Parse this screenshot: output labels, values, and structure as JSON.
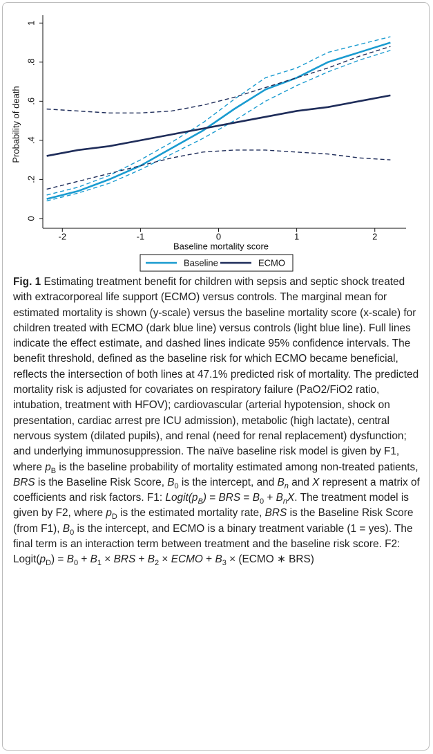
{
  "chart_data": {
    "type": "line",
    "xlabel": "Baseline mortality score",
    "ylabel": "Probability of death",
    "x": [
      -2.2,
      -1.8,
      -1.4,
      -1,
      -0.6,
      -0.2,
      0.2,
      0.6,
      1,
      1.4,
      1.8,
      2.2
    ],
    "series": [
      {
        "name": "Baseline",
        "color": "#1a9bd0",
        "values": [
          0.1,
          0.14,
          0.2,
          0.27,
          0.36,
          0.45,
          0.56,
          0.66,
          0.72,
          0.8,
          0.85,
          0.9
        ],
        "lower": [
          0.09,
          0.13,
          0.18,
          0.25,
          0.33,
          0.41,
          0.5,
          0.6,
          0.68,
          0.75,
          0.81,
          0.86
        ],
        "upper": [
          0.12,
          0.16,
          0.22,
          0.3,
          0.39,
          0.49,
          0.61,
          0.72,
          0.77,
          0.85,
          0.89,
          0.93
        ]
      },
      {
        "name": "ECMO",
        "color": "#1f2d5a",
        "values": [
          0.32,
          0.35,
          0.37,
          0.4,
          0.43,
          0.46,
          0.49,
          0.52,
          0.55,
          0.57,
          0.6,
          0.63
        ],
        "lower": [
          0.15,
          0.19,
          0.23,
          0.27,
          0.31,
          0.34,
          0.35,
          0.35,
          0.34,
          0.33,
          0.31,
          0.3
        ],
        "upper": [
          0.56,
          0.55,
          0.54,
          0.54,
          0.55,
          0.58,
          0.62,
          0.67,
          0.72,
          0.77,
          0.83,
          0.88
        ]
      }
    ],
    "xlim": [
      -2.25,
      2.4
    ],
    "ylim": [
      -0.05,
      1.04
    ],
    "xticks": [
      -2,
      -1,
      0,
      1,
      2
    ],
    "yticks": [
      0,
      {
        "value": 0.2,
        "label": ".2"
      },
      {
        "value": 0.4,
        "label": ".4"
      },
      {
        "value": 0.6,
        "label": ".6"
      },
      {
        "value": 0.8,
        "label": ".8"
      },
      1
    ],
    "legend": "bottom"
  },
  "caption": [
    {
      "t": "Fig. 1",
      "s": "b"
    },
    " Estimating treatment benefit for children with sepsis and septic shock treated with extracorporeal life support (ECMO) versus controls. The marginal mean for estimated mortality is shown (y-scale) versus the baseline mortality score (x-scale) for children treated with ECMO (dark blue line) versus controls (light blue line). Full lines indicate the effect estimate, and dashed lines indicate 95% confidence intervals. The benefit threshold, defined as the baseline risk for which ECMO became beneficial, reflects the intersection of both lines at 47.1% predicted risk of mortality. The predicted mortality risk is adjusted for covariates on respiratory failure (PaO2/FiO2 ratio, intubation, treatment with HFOV); cardiovascular (arterial hypotension, shock on presentation, cardiac arrest pre ICU admission), metabolic (high lactate), central nervous system (dilated pupils), and renal (need for renal replacement) dysfunction; and underlying immunosuppression. The naïve baseline risk model is given by F1, where ",
    {
      "t": "p",
      "s": "i"
    },
    {
      "t": "B",
      "s": "sub"
    },
    " is the baseline probability of mortality estimated among non-treated patients, ",
    {
      "t": "BRS",
      "s": "i"
    },
    " is the Baseline Risk Score, ",
    {
      "t": "B",
      "s": "i"
    },
    {
      "t": "0",
      "s": "sub"
    },
    " is the intercept, and ",
    {
      "t": "B",
      "s": "i"
    },
    {
      "t": "n",
      "s": "isub"
    },
    " and ",
    {
      "t": "X",
      "s": "i"
    },
    " represent a matrix of coefficients and risk factors. F1: ",
    {
      "t": "Logit(p",
      "s": "i"
    },
    {
      "t": "B",
      "s": "isub"
    },
    {
      "t": ")",
      "s": "i"
    },
    " = ",
    {
      "t": "BRS",
      "s": "i"
    },
    " = ",
    {
      "t": "B",
      "s": "i"
    },
    {
      "t": "0",
      "s": "sub"
    },
    " + ",
    {
      "t": "B",
      "s": "i"
    },
    {
      "t": "n",
      "s": "isub"
    },
    {
      "t": "X",
      "s": "i"
    },
    ". The treatment model is given by F2, where ",
    {
      "t": "p",
      "s": "i"
    },
    {
      "t": "D",
      "s": "sub"
    },
    " is the estimated mortality rate, ",
    {
      "t": "BRS",
      "s": "i"
    },
    " is the Baseline Risk Score (from F1), ",
    {
      "t": "B",
      "s": "i"
    },
    {
      "t": "0",
      "s": "sub"
    },
    " is the intercept, and ECMO is a binary treatment variable (1 = yes). The final term is an interaction term between treatment and the baseline risk score. F2: Logit(",
    {
      "t": "p",
      "s": "i"
    },
    {
      "t": "D",
      "s": "sub"
    },
    ") = ",
    {
      "t": "B",
      "s": "i"
    },
    {
      "t": "0",
      "s": "sub"
    },
    " + ",
    {
      "t": "B",
      "s": "i"
    },
    {
      "t": "1",
      "s": "sub"
    },
    " × ",
    {
      "t": "BRS",
      "s": "i"
    },
    " + ",
    {
      "t": "B",
      "s": "i"
    },
    {
      "t": "2",
      "s": "sub"
    },
    " × ",
    {
      "t": "ECMO",
      "s": "i"
    },
    " + ",
    {
      "t": "B",
      "s": "i"
    },
    {
      "t": "3",
      "s": "sub"
    },
    " × (ECMO ∗ BRS)"
  ]
}
